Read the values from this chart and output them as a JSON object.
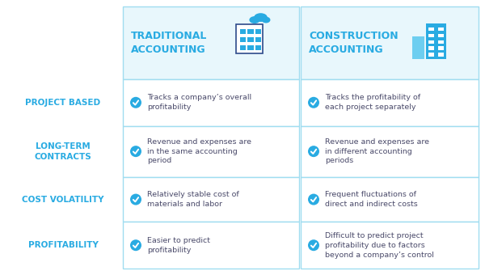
{
  "bg_color": "#ffffff",
  "border_color": "#a0ddf0",
  "header_fill": "#e8f7fc",
  "row_label_color": "#29abe2",
  "header_color": "#29abe2",
  "text_color": "#4a4a6a",
  "check_color": "#29abe2",
  "col1_header": "TRADITIONAL\nACCOUNTING",
  "col2_header": "CONSTRUCTION\nACCOUNTING",
  "row_labels": [
    "PROJECT BASED",
    "LONG-TERM\nCONTRACTS",
    "COST VOLATILITY",
    "PROFITABILITY"
  ],
  "col1_texts": [
    "Tracks a company’s overall\nprofitability",
    "Revenue and expenses are\nin the same accounting\nperiod",
    "Relatively stable cost of\nmaterials and labor",
    "Easier to predict\nprofitability"
  ],
  "col2_texts": [
    "Tracks the profitability of\neach project separately",
    "Revenue and expenses are\nin different accounting\nperiods",
    "Frequent fluctuations of\ndirect and indirect costs",
    "Difficult to predict project\nprofitability due to factors\nbeyond a company’s control"
  ],
  "figw": 6.0,
  "figh": 3.4,
  "dpi": 100
}
